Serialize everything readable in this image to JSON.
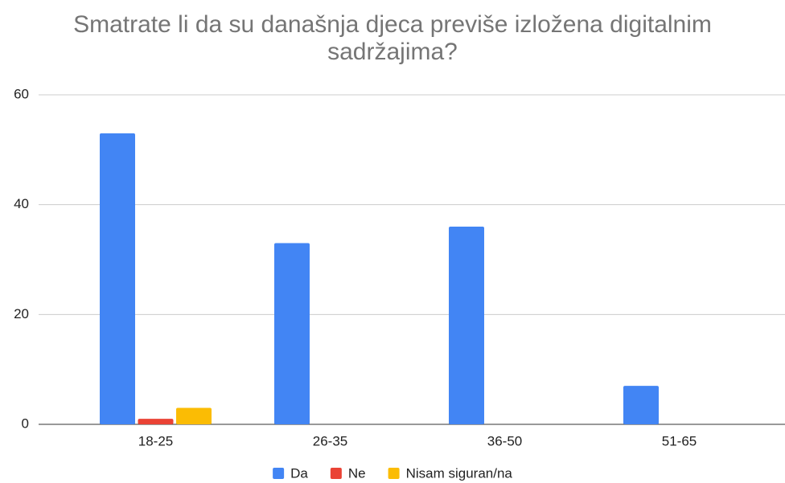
{
  "chart_data": {
    "type": "bar",
    "title": "Smatrate li da su današnja djeca previše izložena digitalnim sadržajima?",
    "categories": [
      "18-25",
      "26-35",
      "36-50",
      "51-65"
    ],
    "series": [
      {
        "name": "Da",
        "color": "#4285f4",
        "values": [
          53,
          33,
          36,
          7
        ]
      },
      {
        "name": "Ne",
        "color": "#ea4335",
        "values": [
          1,
          0,
          0,
          0
        ]
      },
      {
        "name": "Nisam siguran/na",
        "color": "#fbbc04",
        "values": [
          3,
          0,
          0,
          0
        ]
      }
    ],
    "ylim": [
      0,
      60
    ],
    "yticks": [
      0,
      20,
      40,
      60
    ],
    "grid": true,
    "legend": "bottom"
  }
}
